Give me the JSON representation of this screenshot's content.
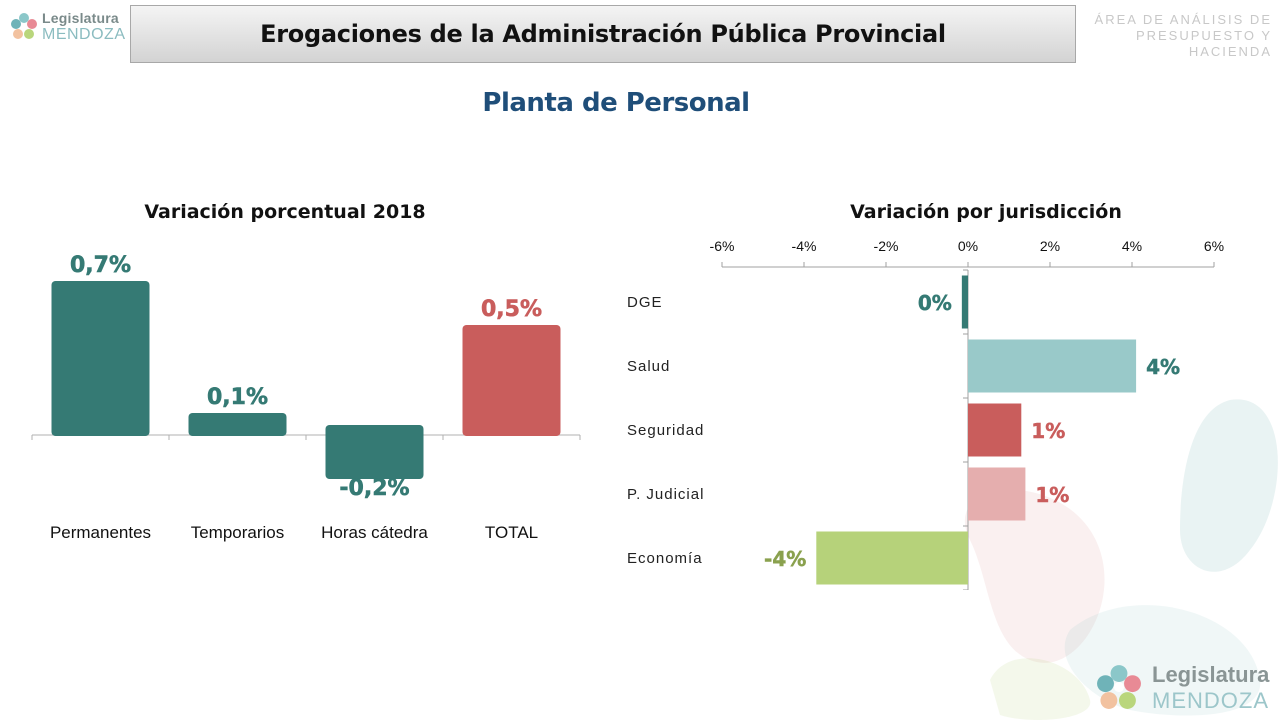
{
  "header": {
    "logo_line1": "Legislatura",
    "logo_line2": "MENDOZA",
    "title": "Erogaciones de la Administración Pública Provincial",
    "area_line1": "ÁREA DE ANÁLISIS DE",
    "area_line2": "PRESUPUESTO Y HACIENDA"
  },
  "subtitle": "Planta de Personal",
  "footer": {
    "logo_line1": "Legislatura",
    "logo_line2": "MENDOZA"
  },
  "colors": {
    "teal": "#357a74",
    "red": "#c95d5c",
    "light_teal": "#99c9c9",
    "light_red": "#e5aeae",
    "green": "#b6d27a",
    "olive": "#8aa14e"
  },
  "chart_data": [
    {
      "type": "bar",
      "title": "Variación porcentual 2018",
      "categories": [
        "Permanentes",
        "Temporarios",
        "Horas cátedra",
        "TOTAL"
      ],
      "values": [
        0.7,
        0.1,
        -0.2,
        0.5
      ],
      "labels": [
        "0,7%",
        "0,1%",
        "-0,2%",
        "0,5%"
      ],
      "colors": [
        "#357a74",
        "#357a74",
        "#357a74",
        "#c95d5c"
      ],
      "xlabel": "",
      "ylabel": ""
    },
    {
      "type": "bar",
      "orientation": "horizontal",
      "title": "Variación por jurisdicción",
      "categories": [
        "DGE",
        "Salud",
        "Seguridad",
        "P. Judicial",
        "Economía"
      ],
      "values": [
        -0.15,
        4.1,
        1.3,
        1.4,
        -3.7
      ],
      "labels": [
        "0%",
        "4%",
        "1%",
        "1%",
        "-4%"
      ],
      "colors": [
        "#357a74",
        "#99c9c9",
        "#c95d5c",
        "#e5aeae",
        "#b6d27a"
      ],
      "label_colors": [
        "#357a74",
        "#357a74",
        "#c95d5c",
        "#c95d5c",
        "#8aa14e"
      ],
      "xticks": [
        "-6%",
        "-4%",
        "-2%",
        "0%",
        "2%",
        "4%",
        "6%"
      ],
      "xlim": [
        -6,
        6
      ],
      "axis_position": "top",
      "xlabel": "",
      "ylabel": ""
    }
  ]
}
